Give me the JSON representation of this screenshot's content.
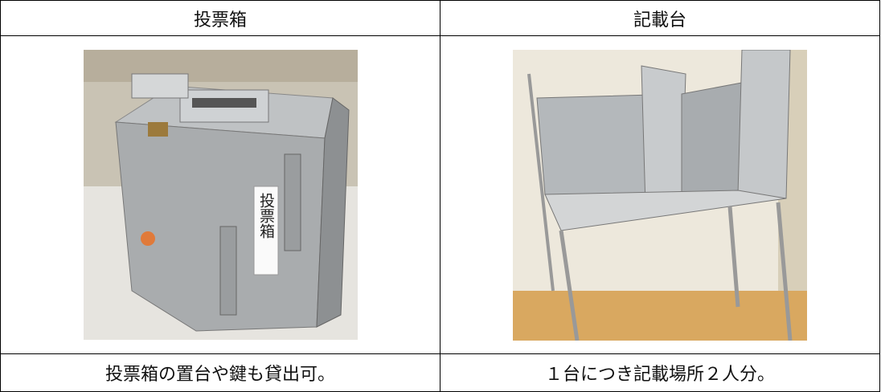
{
  "table": {
    "header": [
      "投票箱",
      "記載台"
    ],
    "captions": [
      "投票箱の置台や鍵も貸出可。",
      "１台につき記載場所２人分。"
    ]
  },
  "photo_sign": "投票箱"
}
